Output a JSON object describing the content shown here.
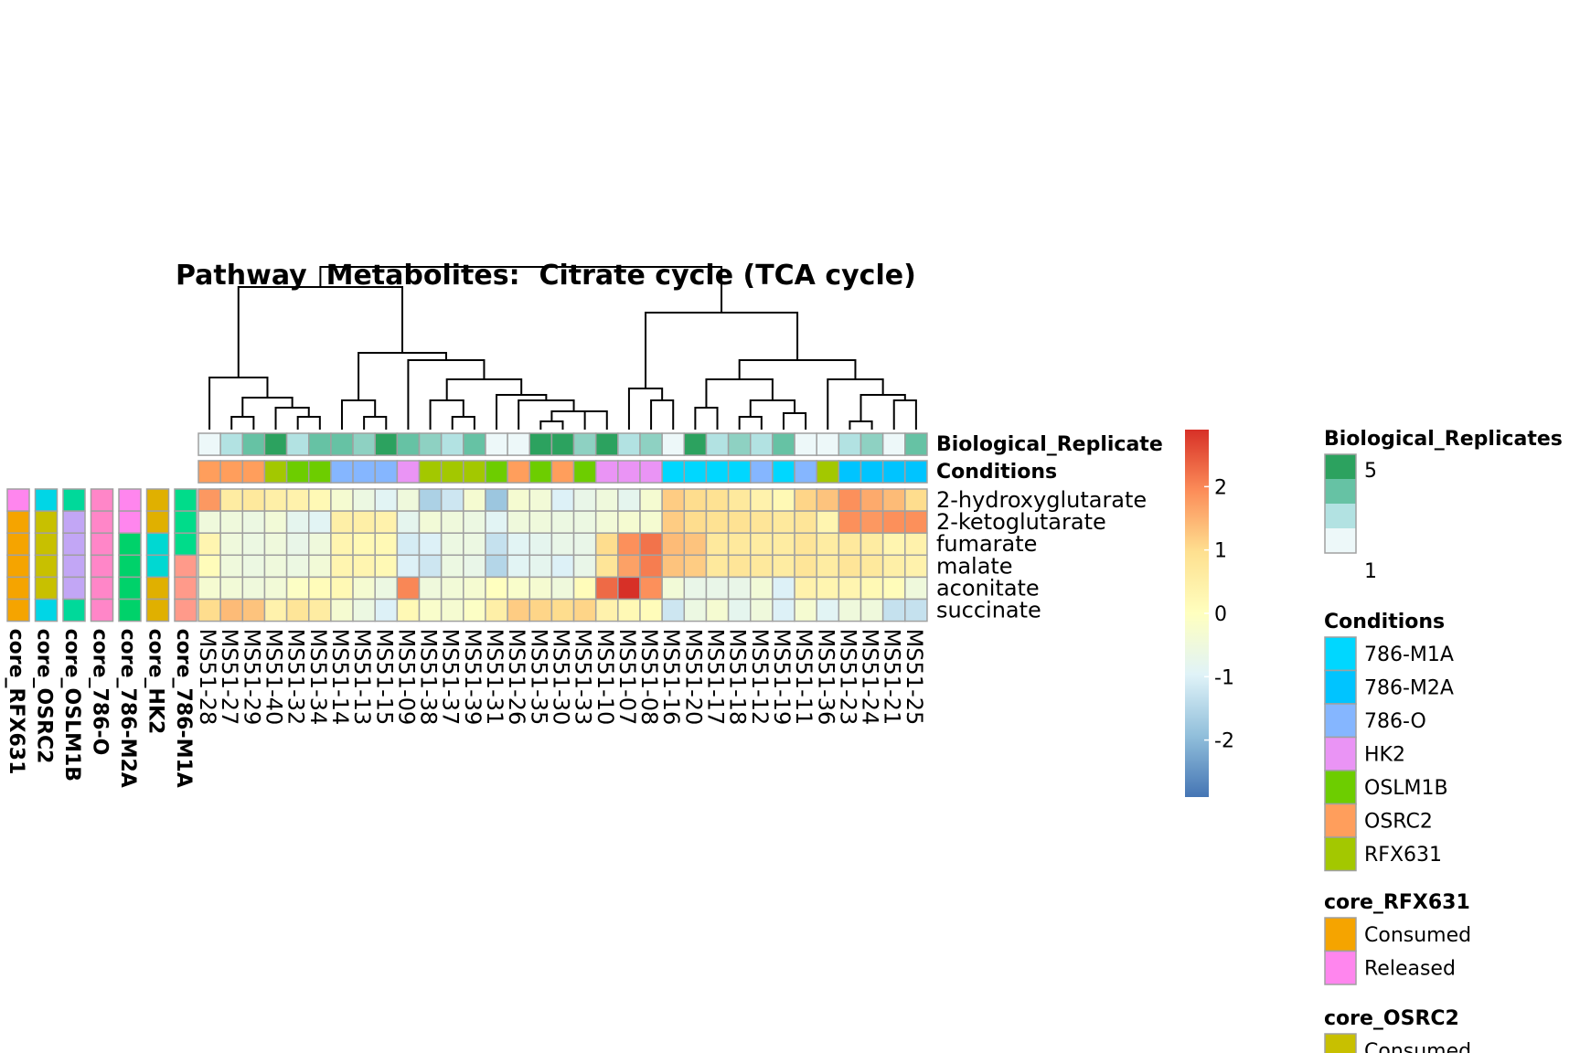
{
  "chart_data": {
    "type": "heatmap",
    "title": "Pathway  Metabolites:  Citrate cycle (TCA cycle)",
    "columns": [
      "MS51-28",
      "MS51-27",
      "MS51-29",
      "MS51-40",
      "MS51-32",
      "MS51-34",
      "MS51-14",
      "MS51-13",
      "MS51-15",
      "MS51-09",
      "MS51-38",
      "MS51-37",
      "MS51-39",
      "MS51-31",
      "MS51-26",
      "MS51-35",
      "MS51-30",
      "MS51-33",
      "MS51-10",
      "MS51-07",
      "MS51-08",
      "MS51-16",
      "MS51-20",
      "MS51-17",
      "MS51-18",
      "MS51-12",
      "MS51-19",
      "MS51-11",
      "MS51-36",
      "MS51-23",
      "MS51-24",
      "MS51-21",
      "MS51-25"
    ],
    "rows": [
      "2-hydroxyglutarate",
      "2-ketoglutarate",
      "fumarate",
      "malate",
      "aconitate",
      "succinate"
    ],
    "values": [
      [
        1.8,
        0.6,
        0.7,
        0.5,
        0.4,
        0.2,
        -0.3,
        -0.6,
        -0.9,
        -0.5,
        -1.6,
        -1.2,
        -0.3,
        -1.8,
        -0.3,
        -0.4,
        -1.0,
        -0.7,
        -0.5,
        -0.8,
        -0.3,
        1.2,
        1.0,
        0.9,
        0.7,
        0.4,
        0.2,
        1.1,
        1.3,
        1.9,
        1.6,
        1.4,
        1.0
      ],
      [
        -0.5,
        -0.5,
        -0.6,
        -0.4,
        -0.8,
        -0.9,
        0.5,
        0.5,
        0.4,
        -0.8,
        -0.4,
        -0.5,
        -0.6,
        -0.9,
        -0.5,
        -0.5,
        -0.6,
        -0.6,
        -0.4,
        -0.3,
        -0.3,
        1.2,
        1.0,
        0.9,
        0.9,
        0.8,
        0.7,
        0.8,
        0.3,
        1.9,
        1.8,
        1.9,
        1.9
      ],
      [
        0.3,
        -0.5,
        -0.6,
        -0.5,
        -0.7,
        -0.5,
        0.3,
        0.2,
        0.2,
        -1.1,
        -1.0,
        -0.6,
        -0.6,
        -1.3,
        -0.9,
        -0.8,
        -0.7,
        -0.7,
        1.0,
        1.9,
        2.2,
        1.4,
        1.3,
        0.7,
        0.7,
        0.6,
        0.6,
        0.8,
        0.6,
        0.7,
        0.6,
        0.3,
        0.4
      ],
      [
        0.1,
        -0.5,
        -0.6,
        -0.5,
        -0.6,
        -0.4,
        0.3,
        0.3,
        0.2,
        -1.0,
        -1.2,
        -0.6,
        -0.7,
        -1.5,
        -0.9,
        -0.8,
        -1.0,
        -0.7,
        0.8,
        1.7,
        2.1,
        1.3,
        1.2,
        0.7,
        0.8,
        0.7,
        0.6,
        0.8,
        0.6,
        0.8,
        0.7,
        0.5,
        0.4
      ],
      [
        -0.3,
        -0.4,
        -0.5,
        -0.4,
        -0.1,
        0.1,
        0.2,
        -0.3,
        -0.6,
        2.0,
        -0.5,
        -0.4,
        -0.3,
        0.0,
        -0.2,
        -0.3,
        -0.5,
        0.1,
        2.3,
        2.9,
        1.9,
        -0.4,
        -0.7,
        -0.7,
        -0.7,
        -0.4,
        -1.0,
        0.4,
        0.3,
        0.3,
        0.2,
        0.1,
        -0.5
      ],
      [
        1.0,
        1.4,
        1.3,
        0.4,
        0.8,
        0.6,
        -0.3,
        -0.6,
        -1.0,
        0.2,
        -0.2,
        -0.3,
        -0.1,
        0.5,
        1.2,
        1.1,
        1.0,
        1.1,
        0.4,
        0.2,
        0.1,
        -1.2,
        -0.6,
        -0.3,
        -0.8,
        -0.5,
        -1.0,
        -0.3,
        -0.9,
        -0.5,
        -0.5,
        -1.3,
        -1.3
      ]
    ],
    "color_scale": {
      "min": -2.9,
      "mid": 0,
      "max": 2.9,
      "ticks": [
        -2,
        -1,
        0,
        1,
        2
      ],
      "colors": [
        "#4575b4",
        "#91bfdb",
        "#e0f3f8",
        "#ffffbf",
        "#fee090",
        "#fc8d59",
        "#d73027"
      ]
    },
    "column_annotations": [
      {
        "name": "Biological_Replicate",
        "levels": [
          1,
          2,
          4,
          5,
          2,
          4,
          4,
          3,
          5,
          4,
          3,
          2,
          4,
          1,
          1,
          5,
          5,
          3,
          5,
          2,
          3,
          1,
          5,
          2,
          3,
          2,
          4,
          1,
          1,
          2,
          3,
          1,
          4
        ]
      },
      {
        "name": "Conditions",
        "levels": [
          "OSRC2",
          "OSRC2",
          "OSRC2",
          "RFX631",
          "OSLM1B",
          "OSLM1B",
          "786-O",
          "786-O",
          "786-O",
          "HK2",
          "RFX631",
          "RFX631",
          "RFX631",
          "OSLM1B",
          "OSRC2",
          "OSLM1B",
          "OSRC2",
          "OSLM1B",
          "HK2",
          "HK2",
          "HK2",
          "786-M1A",
          "786-M1A",
          "786-M1A",
          "786-M1A",
          "786-O",
          "786-M1A",
          "786-O",
          "RFX631",
          "786-M2A",
          "786-M2A",
          "786-M2A",
          "786-M2A"
        ]
      }
    ],
    "row_annotations": [
      {
        "name": "core_RFX631",
        "levels": [
          "Released",
          "Consumed",
          "Consumed",
          "Consumed",
          "Consumed",
          "Consumed"
        ]
      },
      {
        "name": "core_OSRC2",
        "levels": [
          "Released",
          "Consumed",
          "Consumed",
          "Consumed",
          "Consumed",
          "Released"
        ]
      },
      {
        "name": "core_OSLM1B",
        "levels": [
          "Released",
          "Consumed",
          "Consumed",
          "Consumed",
          "Consumed",
          "Released"
        ]
      },
      {
        "name": "core_786-O",
        "levels": [
          "Released",
          "Released",
          "Released",
          "Released",
          "Released",
          "Released"
        ]
      },
      {
        "name": "core_786-M2A",
        "levels": [
          "Released",
          "Released",
          "Consumed",
          "Consumed",
          "Consumed",
          "Consumed"
        ]
      },
      {
        "name": "core_HK2",
        "levels": [
          "Consumed",
          "Consumed",
          "Released",
          "Released",
          "Consumed",
          "Consumed"
        ]
      },
      {
        "name": "core_786-M1A",
        "levels": [
          "Released",
          "Released",
          "Released",
          "Consumed",
          "Consumed",
          "Consumed"
        ]
      }
    ],
    "annotation_colors": {
      "Biological_Replicates": {
        "1": "#edf8f9",
        "2": "#b2e2e2",
        "3": "#8ed1c2",
        "4": "#66c2a4",
        "5": "#2ca25f"
      },
      "Conditions": {
        "786-M1A": "#00d7ff",
        "786-M2A": "#00c4ff",
        "786-O": "#85b6ff",
        "HK2": "#ea94f5",
        "OSLM1B": "#6dcd00",
        "OSRC2": "#ff9e5c",
        "RFX631": "#a3c800"
      },
      "core_RFX631": {
        "Consumed": "#f5a400",
        "Released": "#ff86ee"
      },
      "core_OSRC2": {
        "Consumed": "#c8c000",
        "Released": "#00d6e6"
      },
      "core_OSLM1B": {
        "Consumed": "#c2a6f5",
        "Released": "#00d99a"
      },
      "core_786-O": {
        "Consumed": "#ff86c8",
        "Released": "#ff86c8"
      },
      "core_786-M2A": {
        "Consumed": "#00d26a",
        "Released": "#ff86ee"
      },
      "core_HK2": {
        "Consumed": "#e0b000",
        "Released": "#00d8d2"
      },
      "core_786-M1A": {
        "Consumed": "#ff9a8a",
        "Released": "#00dc8a"
      }
    },
    "legends": [
      {
        "title": "Biological_Replicates",
        "type": "gradient",
        "labels": [
          "5",
          "1"
        ],
        "colors": [
          "#2ca25f",
          "#66c2a4",
          "#b2e2e2",
          "#edf8f9"
        ]
      },
      {
        "title": "Conditions",
        "type": "discrete",
        "entries": [
          "786-M1A",
          "786-M2A",
          "786-O",
          "HK2",
          "OSLM1B",
          "OSRC2",
          "RFX631"
        ]
      },
      {
        "title": "core_RFX631",
        "type": "discrete",
        "entries": [
          "Consumed",
          "Released"
        ]
      },
      {
        "title": "core_OSRC2",
        "type": "discrete",
        "entries": [
          "Consumed"
        ]
      }
    ],
    "dendrogram": "column clustering tree shown above heatmap"
  }
}
